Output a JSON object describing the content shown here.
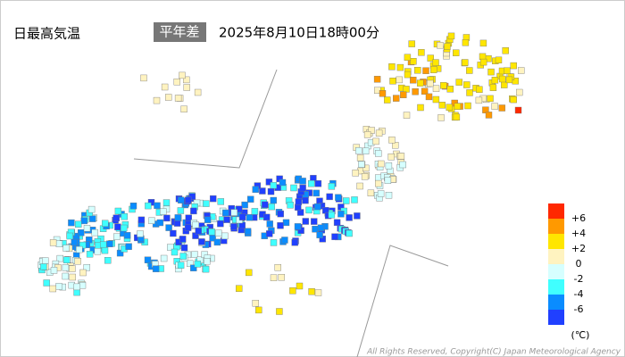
{
  "header": {
    "title": "日最高気温",
    "mode": "平年差",
    "datetime": "2025年8月10日18時00分"
  },
  "legend": {
    "unit": "(℃)",
    "colors": [
      "#ff2800",
      "#ff9900",
      "#ffe600",
      "#fff3c0",
      "#d6ffff",
      "#40ffff",
      "#0a8cff",
      "#2040ff"
    ],
    "ticks": [
      {
        "value": 6,
        "label": "+6"
      },
      {
        "value": 4,
        "label": "+4"
      },
      {
        "value": 2,
        "label": "+2"
      },
      0,
      -2,
      -4,
      -6
    ]
  },
  "footer": {
    "copyright": "All Rights Reserved, Copyright(C) Japan Meteorological Agency"
  }
}
